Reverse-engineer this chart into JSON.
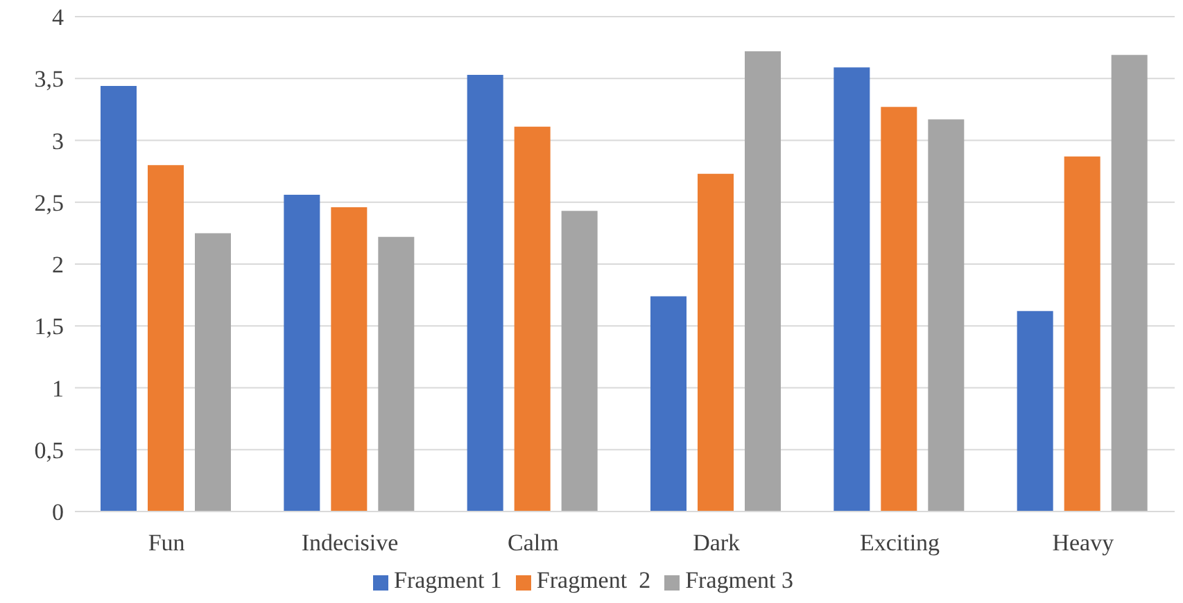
{
  "chart_data": {
    "type": "bar",
    "categories": [
      "Fun",
      "Indecisive",
      "Calm",
      "Dark",
      "Exciting",
      "Heavy"
    ],
    "series": [
      {
        "name": "Fragment 1",
        "color": "#4472c4",
        "values": [
          3.44,
          2.56,
          3.53,
          1.74,
          3.59,
          1.62
        ]
      },
      {
        "name": "Fragment  2",
        "color": "#ed7d31",
        "values": [
          2.8,
          2.46,
          3.11,
          2.73,
          3.27,
          2.87
        ]
      },
      {
        "name": "Fragment 3",
        "color": "#a5a5a5",
        "values": [
          2.25,
          2.22,
          2.43,
          3.72,
          3.17,
          3.69
        ]
      }
    ],
    "ylim": [
      0,
      4
    ],
    "yticks": [
      0,
      {
        "value": 0.5,
        "label": "0,5"
      },
      1,
      {
        "value": 1.5,
        "label": "1,5"
      },
      2,
      {
        "value": 2.5,
        "label": "2,5"
      },
      3,
      {
        "value": 3.5,
        "label": "3,5"
      },
      4
    ],
    "grid": "y",
    "legend": "bottom"
  }
}
